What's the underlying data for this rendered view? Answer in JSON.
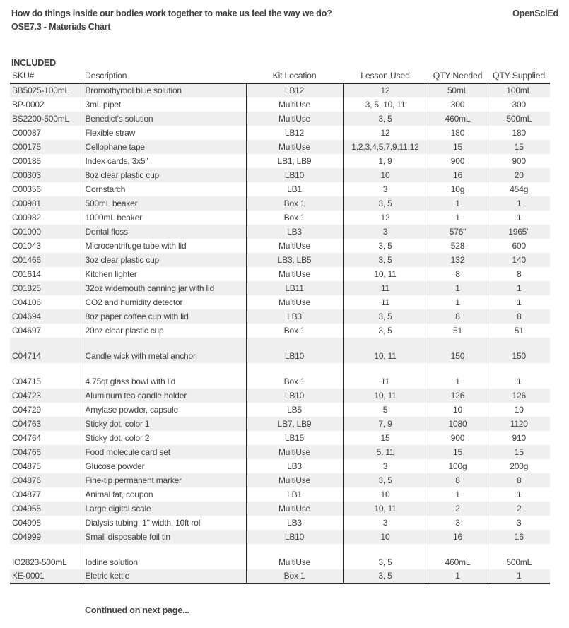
{
  "header": {
    "question": "How do things inside our bodies work together to make us feel the way we do?",
    "brand": "OpenSciEd",
    "subtitle": "OSE7.3 - Materials Chart"
  },
  "section_label": "INCLUDED",
  "table": {
    "columns": [
      "SKU#",
      "Description",
      "Kit Location",
      "Lesson Used",
      "QTY Needed",
      "QTY Supplied"
    ],
    "rows": [
      {
        "sku": "BB5025-100mL",
        "description": "Bromothymol blue solution",
        "kit_location": "LB12",
        "lesson_used": "12",
        "qty_needed": "50mL",
        "qty_supplied": "100mL",
        "tall": false
      },
      {
        "sku": "BP-0002",
        "description": "3mL pipet",
        "kit_location": "MultiUse",
        "lesson_used": "3, 5, 10, 11",
        "qty_needed": "300",
        "qty_supplied": "300",
        "tall": false
      },
      {
        "sku": "BS2200-500mL",
        "description": "Benedict's solution",
        "kit_location": "MultiUse",
        "lesson_used": "3, 5",
        "qty_needed": "460mL",
        "qty_supplied": "500mL",
        "tall": false
      },
      {
        "sku": "C00087",
        "description": "Flexible straw",
        "kit_location": "LB12",
        "lesson_used": "12",
        "qty_needed": "180",
        "qty_supplied": "180",
        "tall": false
      },
      {
        "sku": "C00175",
        "description": "Cellophane tape",
        "kit_location": "MultiUse",
        "lesson_used": "1,2,3,4,5,7,9,11,12",
        "qty_needed": "15",
        "qty_supplied": "15",
        "tall": false
      },
      {
        "sku": "C00185",
        "description": "Index cards, 3x5\"",
        "kit_location": "LB1, LB9",
        "lesson_used": "1, 9",
        "qty_needed": "900",
        "qty_supplied": "900",
        "tall": false
      },
      {
        "sku": "C00303",
        "description": "8oz clear plastic cup",
        "kit_location": "LB10",
        "lesson_used": "10",
        "qty_needed": "16",
        "qty_supplied": "20",
        "tall": false
      },
      {
        "sku": "C00356",
        "description": "Cornstarch",
        "kit_location": "LB1",
        "lesson_used": "3",
        "qty_needed": "10g",
        "qty_supplied": "454g",
        "tall": false
      },
      {
        "sku": "C00981",
        "description": "500mL beaker",
        "kit_location": "Box 1",
        "lesson_used": "3, 5",
        "qty_needed": "1",
        "qty_supplied": "1",
        "tall": false
      },
      {
        "sku": "C00982",
        "description": "1000mL beaker",
        "kit_location": "Box 1",
        "lesson_used": "12",
        "qty_needed": "1",
        "qty_supplied": "1",
        "tall": false
      },
      {
        "sku": "C01000",
        "description": "Dental floss",
        "kit_location": "LB3",
        "lesson_used": "3",
        "qty_needed": "576\"",
        "qty_supplied": "1965\"",
        "tall": false
      },
      {
        "sku": "C01043",
        "description": "Microcentrifuge tube with lid",
        "kit_location": "MultiUse",
        "lesson_used": "3, 5",
        "qty_needed": "528",
        "qty_supplied": "600",
        "tall": false
      },
      {
        "sku": "C01466",
        "description": "3oz clear plastic cup",
        "kit_location": "LB3, LB5",
        "lesson_used": "3, 5",
        "qty_needed": "132",
        "qty_supplied": "140",
        "tall": false
      },
      {
        "sku": "C01614",
        "description": "Kitchen lighter",
        "kit_location": "MultiUse",
        "lesson_used": "10, 11",
        "qty_needed": "8",
        "qty_supplied": "8",
        "tall": false
      },
      {
        "sku": "C01825",
        "description": "32oz widemouth canning jar with lid",
        "kit_location": "LB11",
        "lesson_used": "11",
        "qty_needed": "1",
        "qty_supplied": "1",
        "tall": false
      },
      {
        "sku": "C04106",
        "description": "CO2 and humidity detector",
        "kit_location": "MultiUse",
        "lesson_used": "11",
        "qty_needed": "1",
        "qty_supplied": "1",
        "tall": false
      },
      {
        "sku": "C04694",
        "description": "8oz paper coffee cup with lid",
        "kit_location": "LB3",
        "lesson_used": "3, 5",
        "qty_needed": "8",
        "qty_supplied": "8",
        "tall": false
      },
      {
        "sku": "C04697",
        "description": "20oz clear plastic cup",
        "kit_location": "Box 1",
        "lesson_used": "3, 5",
        "qty_needed": "51",
        "qty_supplied": "51",
        "tall": false
      },
      {
        "sku": "C04714",
        "description": "Candle wick with metal anchor",
        "kit_location": "LB10",
        "lesson_used": "10, 11",
        "qty_needed": "150",
        "qty_supplied": "150",
        "tall": true
      },
      {
        "sku": "C04715",
        "description": "4.75qt glass bowl with lid",
        "kit_location": "Box 1",
        "lesson_used": "11",
        "qty_needed": "1",
        "qty_supplied": "1",
        "tall": true
      },
      {
        "sku": "C04723",
        "description": "Aluminum tea candle holder",
        "kit_location": "LB10",
        "lesson_used": "10, 11",
        "qty_needed": "126",
        "qty_supplied": "126",
        "tall": false
      },
      {
        "sku": "C04729",
        "description": "Amylase powder, capsule",
        "kit_location": "LB5",
        "lesson_used": "5",
        "qty_needed": "10",
        "qty_supplied": "10",
        "tall": false
      },
      {
        "sku": "C04763",
        "description": "Sticky dot, color 1",
        "kit_location": "LB7, LB9",
        "lesson_used": "7, 9",
        "qty_needed": "1080",
        "qty_supplied": "1120",
        "tall": false
      },
      {
        "sku": "C04764",
        "description": "Sticky dot, color 2",
        "kit_location": "LB15",
        "lesson_used": "15",
        "qty_needed": "900",
        "qty_supplied": "910",
        "tall": false
      },
      {
        "sku": "C04766",
        "description": "Food molecule card set",
        "kit_location": "MultiUse",
        "lesson_used": "5, 11",
        "qty_needed": "15",
        "qty_supplied": "15",
        "tall": false
      },
      {
        "sku": "C04875",
        "description": "Glucose powder",
        "kit_location": "LB3",
        "lesson_used": "3",
        "qty_needed": "100g",
        "qty_supplied": "200g",
        "tall": false
      },
      {
        "sku": "C04876",
        "description": "Fine-tip permanent marker",
        "kit_location": "MultiUse",
        "lesson_used": "3, 5",
        "qty_needed": "8",
        "qty_supplied": "8",
        "tall": false
      },
      {
        "sku": "C04877",
        "description": "Animal fat, coupon",
        "kit_location": "LB1",
        "lesson_used": "10",
        "qty_needed": "1",
        "qty_supplied": "1",
        "tall": false
      },
      {
        "sku": "C04955",
        "description": "Large digital scale",
        "kit_location": "MultiUse",
        "lesson_used": "10, 11",
        "qty_needed": "2",
        "qty_supplied": "2",
        "tall": false
      },
      {
        "sku": "C04998",
        "description": "Dialysis tubing, 1\" width, 10ft roll",
        "kit_location": "LB3",
        "lesson_used": "3",
        "qty_needed": "3",
        "qty_supplied": "3",
        "tall": false
      },
      {
        "sku": "C04999",
        "description": "Small disposable foil tin",
        "kit_location": "LB10",
        "lesson_used": "10",
        "qty_needed": "16",
        "qty_supplied": "16",
        "tall": false
      },
      {
        "sku": "IO2823-500mL",
        "description": "Iodine solution",
        "kit_location": "MultiUse",
        "lesson_used": "3, 5",
        "qty_needed": "460mL",
        "qty_supplied": "500mL",
        "tall": true
      },
      {
        "sku": "KE-0001",
        "description": "Eletric kettle",
        "kit_location": "Box 1",
        "lesson_used": "3, 5",
        "qty_needed": "1",
        "qty_supplied": "1",
        "tall": false
      }
    ]
  },
  "footer": {
    "continued": "Continued on next page..."
  },
  "colors": {
    "text": "#404040",
    "shade": "#efefef",
    "border": "#262626"
  }
}
